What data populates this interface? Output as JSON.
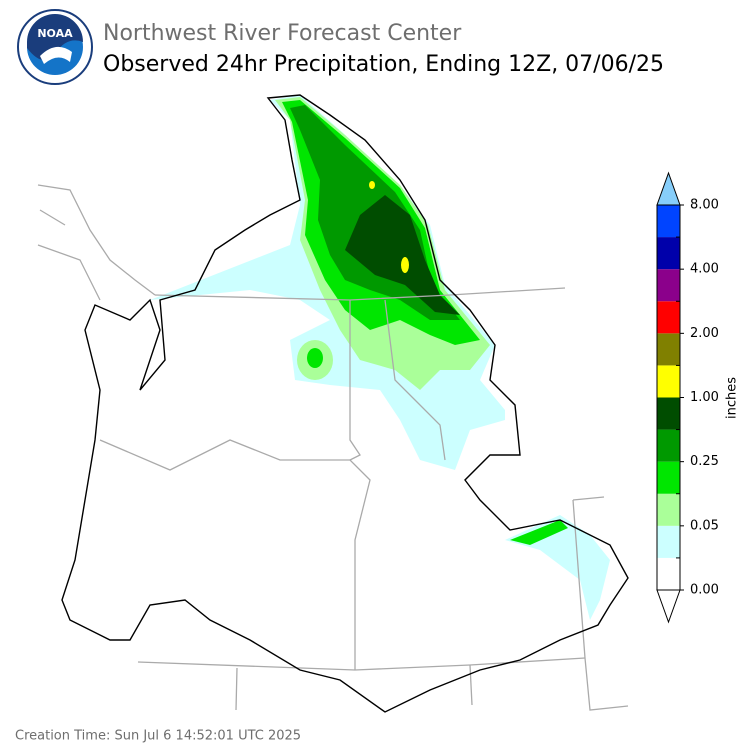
{
  "header": {
    "agency": "Northwest River Forecast Center",
    "title": "Observed 24hr Precipitation, Ending 12Z, 07/06/25",
    "logo_text": "NOAA"
  },
  "colorbar": {
    "label": "inches",
    "colors": [
      "#ffffff",
      "#ccffff",
      "#aaff99",
      "#00e600",
      "#009900",
      "#004d00",
      "#ffff00",
      "#808000",
      "#ff0000",
      "#8b008b",
      "#0000aa",
      "#0044ff"
    ],
    "over_color": "#87cefa",
    "under_color": "#ffffff",
    "ticks": [
      {
        "value": 0,
        "label": "0.00"
      },
      {
        "value": 0.05,
        "label": "0.05"
      },
      {
        "value": 0.25,
        "label": "0.25"
      },
      {
        "value": 1,
        "label": "1.00"
      },
      {
        "value": 2,
        "label": "2.00"
      },
      {
        "value": 4,
        "label": "4.00"
      },
      {
        "value": 8,
        "label": "8.00"
      }
    ]
  },
  "footer": {
    "creation_time": "Creation Time: Sun Jul 6 14:52:01 UTC 2025"
  }
}
